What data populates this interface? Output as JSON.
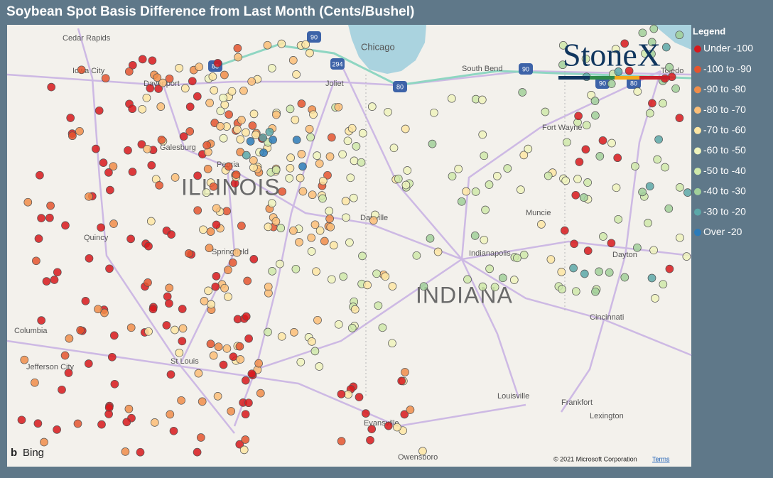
{
  "title": "Soybean Spot Basis Difference from Last Month (Cents/Bushel)",
  "legend": {
    "title": "Legend",
    "items": [
      {
        "label": "Under -100",
        "color": "#d7191c"
      },
      {
        "label": "-100 to -90",
        "color": "#e4552f"
      },
      {
        "label": "-90 to -80",
        "color": "#f08d4a"
      },
      {
        "label": "-80 to -70",
        "color": "#fbbe78"
      },
      {
        "label": "-70 to -60",
        "color": "#fde6a4"
      },
      {
        "label": "-60 to -50",
        "color": "#eef3bd"
      },
      {
        "label": "-50 to -40",
        "color": "#cfe9aa"
      },
      {
        "label": "-40 to -30",
        "color": "#a1d09a"
      },
      {
        "label": "-30 to -20",
        "color": "#5ca8a8"
      },
      {
        "label": "Over -20",
        "color": "#2b7bb9"
      }
    ]
  },
  "map": {
    "places": [
      "Cedar Rapids",
      "Iowa City",
      "Davenport",
      "Galesburg",
      "Peoria",
      "Springfield",
      "Quincy",
      "Columbia",
      "Jefferson City",
      "St Louis",
      "Chicago",
      "Joliet",
      "South Bend",
      "Fort Wayne",
      "Toledo",
      "Muncie",
      "Danville",
      "Indianapolis",
      "Dayton",
      "Cincinnati",
      "Louisville",
      "Frankfort",
      "Lexington",
      "Evansville",
      "Owensboro"
    ],
    "states": [
      "ILLINOIS",
      "INDIANA"
    ],
    "highways": [
      "90",
      "294",
      "88",
      "80",
      "90",
      "90",
      "80"
    ],
    "logo": "StoneX",
    "provider": "Bing",
    "copyright": "© 2021 Microsoft Corporation",
    "terms": "Terms"
  }
}
